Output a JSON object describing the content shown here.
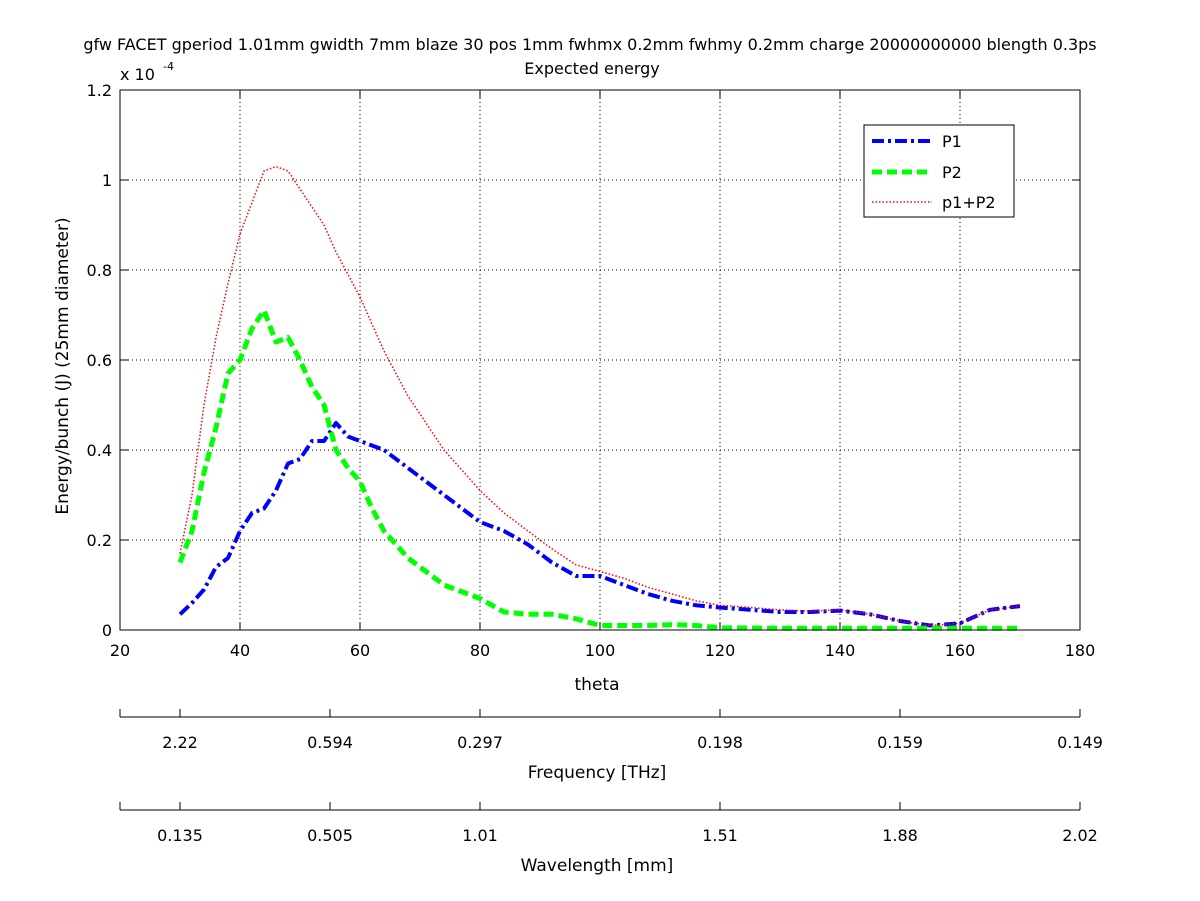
{
  "chart_data": {
    "type": "line",
    "title": "gfw FACET gperiod 1.01mm gwidth 7mm blaze 30 pos 1mm fwhmx 0.2mm fwhmy 0.2mm charge 20000000000 blength 0.3ps",
    "subtitle": "Expected energy",
    "xlabel": "theta",
    "ylabel": "Energy/bunch (J) (25mm diameter)",
    "y_scale_label": "x 10",
    "y_scale_exponent": "-4",
    "xlim": [
      20,
      180
    ],
    "ylim": [
      0,
      1.2
    ],
    "grid": true,
    "legend_position": "top-right",
    "xticks": [
      "20",
      "40",
      "60",
      "80",
      "100",
      "120",
      "140",
      "160",
      "180"
    ],
    "yticks": [
      "0",
      "0.2",
      "0.4",
      "0.6",
      "0.8",
      "1",
      "1.2"
    ],
    "secondary_axes": [
      {
        "label": "Frequency [THz]",
        "ticks": [
          {
            "theta": 30,
            "label": "2.22"
          },
          {
            "theta": 55,
            "label": "0.594"
          },
          {
            "theta": 80,
            "label": "0.297"
          },
          {
            "theta": 120,
            "label": "0.198"
          },
          {
            "theta": 150,
            "label": "0.159"
          },
          {
            "theta": 180,
            "label": "0.149"
          }
        ]
      },
      {
        "label": "Wavelength [mm]",
        "ticks": [
          {
            "theta": 30,
            "label": "0.135"
          },
          {
            "theta": 55,
            "label": "0.505"
          },
          {
            "theta": 80,
            "label": "1.01"
          },
          {
            "theta": 120,
            "label": "1.51"
          },
          {
            "theta": 150,
            "label": "1.88"
          },
          {
            "theta": 180,
            "label": "2.02"
          }
        ]
      }
    ],
    "series": [
      {
        "name": "P1",
        "color": "#0000ff",
        "style": "dash-dot",
        "x": [
          30,
          32,
          34,
          36,
          38,
          40,
          42,
          44,
          46,
          48,
          50,
          52,
          54,
          56,
          58,
          60,
          62,
          64,
          66,
          68,
          70,
          72,
          74,
          76,
          78,
          80,
          84,
          88,
          92,
          96,
          100,
          104,
          108,
          112,
          116,
          120,
          125,
          130,
          135,
          140,
          145,
          150,
          155,
          160,
          165,
          170
        ],
        "y": [
          0.035,
          0.06,
          0.09,
          0.14,
          0.16,
          0.22,
          0.26,
          0.27,
          0.31,
          0.37,
          0.38,
          0.42,
          0.42,
          0.46,
          0.43,
          0.42,
          0.41,
          0.4,
          0.38,
          0.36,
          0.34,
          0.32,
          0.3,
          0.28,
          0.26,
          0.24,
          0.22,
          0.19,
          0.15,
          0.12,
          0.12,
          0.1,
          0.08,
          0.065,
          0.055,
          0.05,
          0.045,
          0.04,
          0.04,
          0.043,
          0.035,
          0.02,
          0.01,
          0.015,
          0.045,
          0.053
        ]
      },
      {
        "name": "P2",
        "color": "#00ff00",
        "style": "dashed",
        "x": [
          30,
          32,
          34,
          36,
          38,
          40,
          42,
          44,
          46,
          48,
          50,
          52,
          54,
          56,
          58,
          60,
          62,
          64,
          66,
          68,
          70,
          72,
          74,
          76,
          78,
          80,
          84,
          88,
          92,
          96,
          100,
          104,
          108,
          112,
          116,
          120,
          130,
          140,
          150,
          160,
          170
        ],
        "y": [
          0.15,
          0.22,
          0.35,
          0.45,
          0.57,
          0.6,
          0.67,
          0.71,
          0.64,
          0.65,
          0.6,
          0.54,
          0.5,
          0.4,
          0.36,
          0.33,
          0.27,
          0.22,
          0.19,
          0.16,
          0.14,
          0.12,
          0.1,
          0.09,
          0.08,
          0.07,
          0.04,
          0.035,
          0.035,
          0.025,
          0.01,
          0.01,
          0.01,
          0.012,
          0.01,
          0.005,
          0.004,
          0.004,
          0.004,
          0.004,
          0.004
        ]
      },
      {
        "name": "p1+P2",
        "color": "#ff0000",
        "style": "dotted",
        "x": [
          30,
          32,
          34,
          36,
          38,
          40,
          42,
          44,
          46,
          48,
          50,
          52,
          54,
          56,
          58,
          60,
          62,
          64,
          66,
          68,
          70,
          72,
          74,
          76,
          78,
          80,
          84,
          88,
          92,
          96,
          100,
          104,
          108,
          112,
          116,
          120,
          125,
          130,
          135,
          140,
          145,
          150,
          155,
          160,
          165,
          170
        ],
        "y": [
          0.17,
          0.3,
          0.5,
          0.65,
          0.77,
          0.88,
          0.95,
          1.02,
          1.03,
          1.02,
          0.98,
          0.94,
          0.9,
          0.84,
          0.79,
          0.74,
          0.68,
          0.62,
          0.57,
          0.52,
          0.48,
          0.44,
          0.4,
          0.37,
          0.34,
          0.31,
          0.26,
          0.22,
          0.18,
          0.145,
          0.13,
          0.115,
          0.095,
          0.08,
          0.065,
          0.055,
          0.05,
          0.045,
          0.042,
          0.045,
          0.035,
          0.02,
          0.01,
          0.015,
          0.045,
          0.053
        ]
      }
    ]
  }
}
